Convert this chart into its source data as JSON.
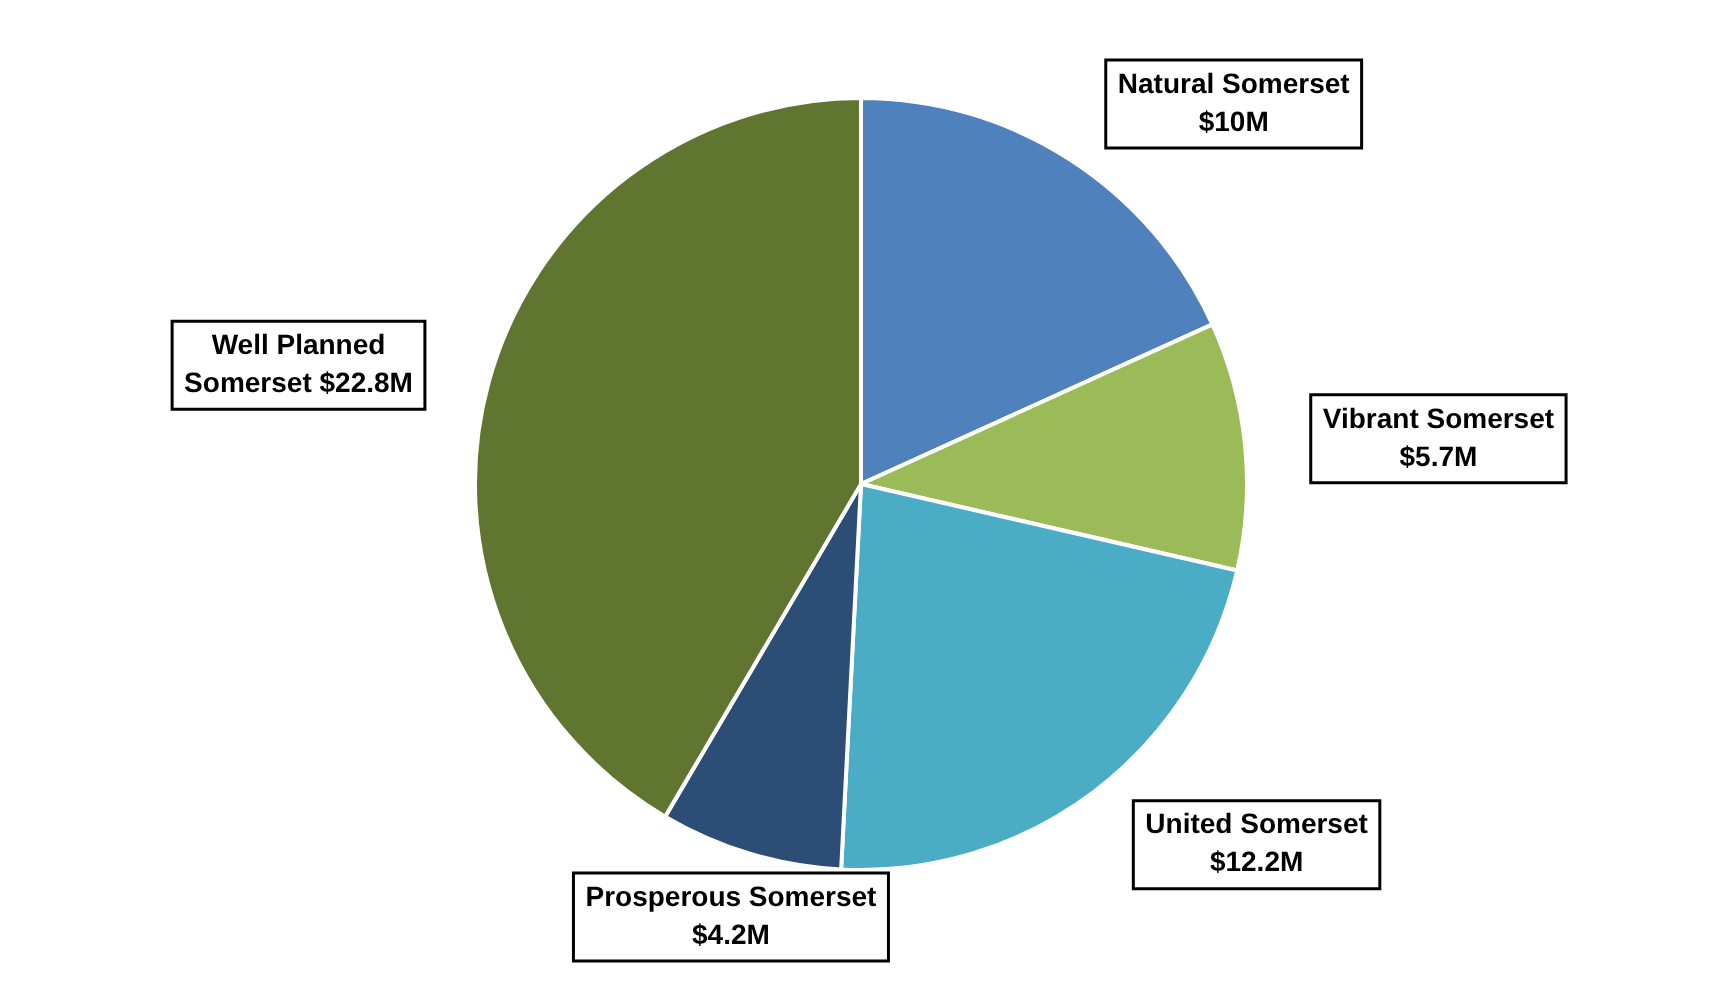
{
  "chart_data": {
    "type": "pie",
    "categories": [
      "Natural Somerset",
      "Vibrant Somerset",
      "United Somerset",
      "Prosperous Somerset",
      "Well Planned Somerset"
    ],
    "values": [
      10,
      5.7,
      12.2,
      4.2,
      22.8
    ],
    "colors": [
      "#4f81bd",
      "#9bbb59",
      "#4bacc6",
      "#2c4d75",
      "#5f7530"
    ],
    "value_labels": [
      "$10M",
      "$5.7M",
      "$12.2M",
      "$4.2M",
      "$22.8M"
    ],
    "legend": false
  }
}
